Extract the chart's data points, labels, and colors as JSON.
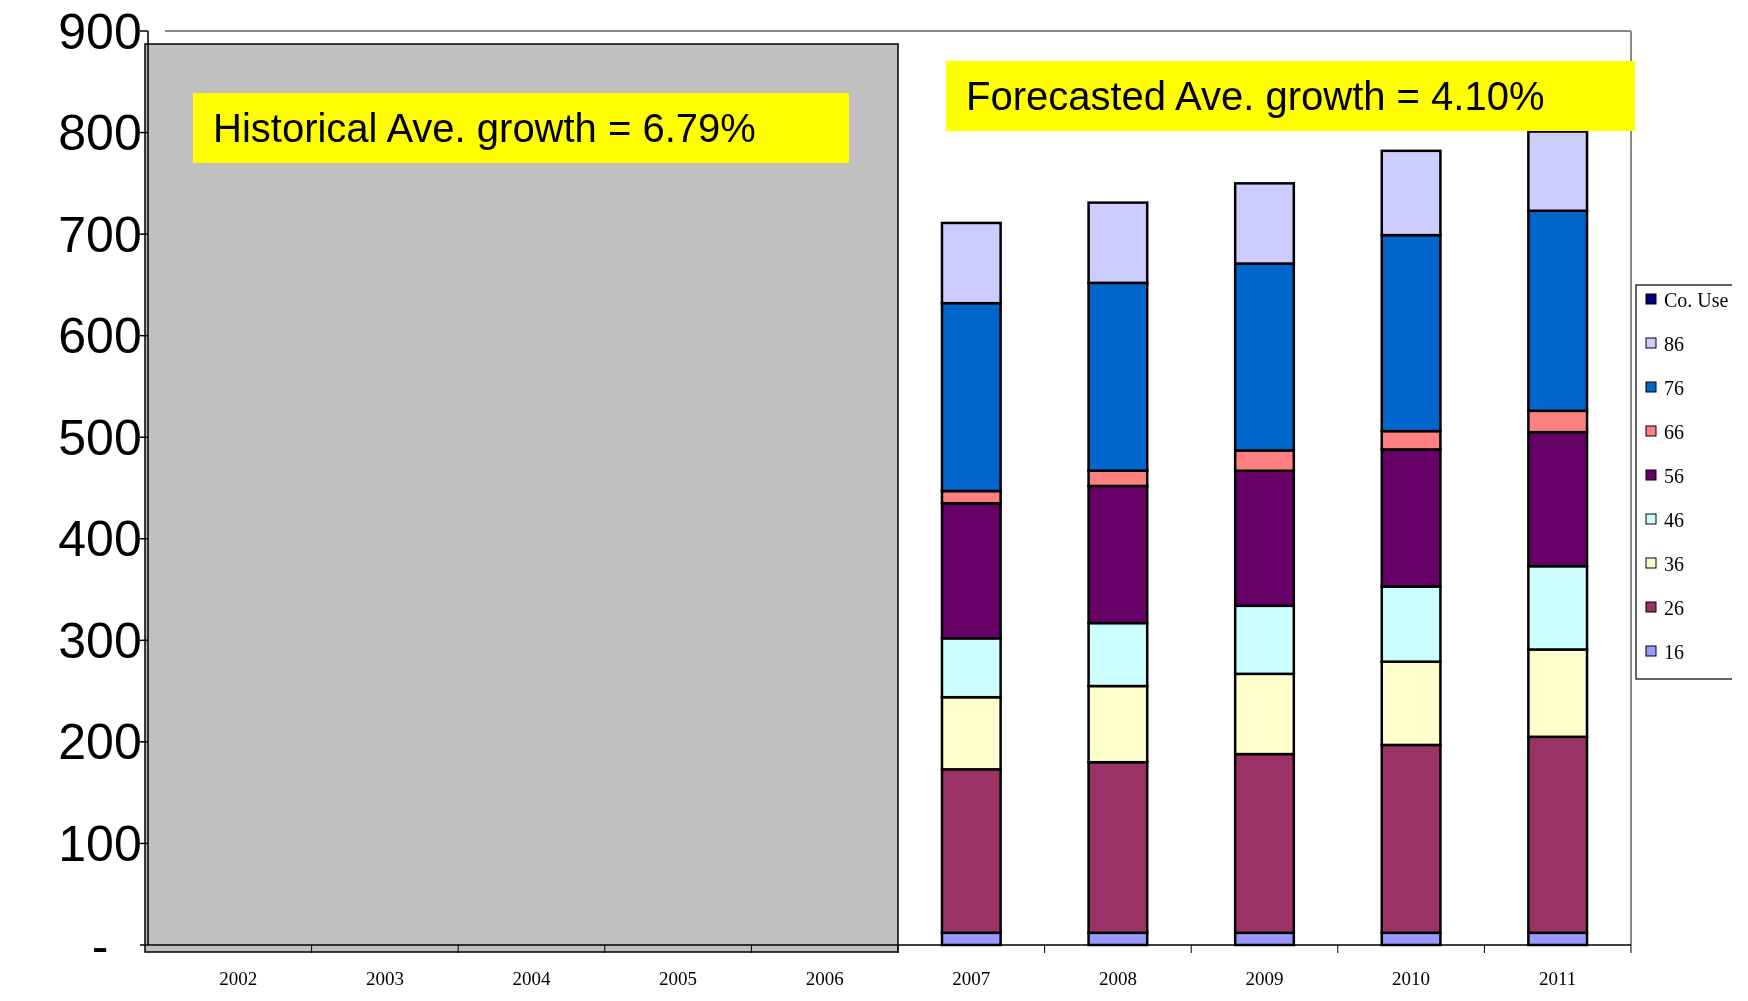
{
  "chart_data": {
    "type": "bar",
    "stacked": true,
    "categories": [
      "2002",
      "2003",
      "2004",
      "2005",
      "2006",
      "2007",
      "2008",
      "2009",
      "2010",
      "2011"
    ],
    "series": [
      {
        "name": "16",
        "color": "#9999ff",
        "values": [
          null,
          null,
          null,
          null,
          null,
          12,
          12,
          12,
          12,
          12
        ]
      },
      {
        "name": "26",
        "color": "#993366",
        "values": [
          null,
          null,
          null,
          null,
          null,
          161,
          168,
          176,
          185,
          193
        ]
      },
      {
        "name": "36",
        "color": "#ffffcc",
        "values": [
          null,
          null,
          null,
          null,
          null,
          71,
          75,
          79,
          82,
          86
        ]
      },
      {
        "name": "46",
        "color": "#ccffff",
        "values": [
          null,
          null,
          null,
          null,
          null,
          58,
          62,
          67,
          74,
          82
        ]
      },
      {
        "name": "56",
        "color": "#660066",
        "values": [
          null,
          null,
          null,
          null,
          null,
          133,
          135,
          133,
          135,
          132
        ]
      },
      {
        "name": "66",
        "color": "#ff8080",
        "values": [
          null,
          null,
          null,
          null,
          null,
          12,
          15,
          20,
          18,
          21
        ]
      },
      {
        "name": "76",
        "color": "#0066cc",
        "values": [
          null,
          null,
          null,
          null,
          null,
          185,
          185,
          184,
          193,
          197
        ]
      },
      {
        "name": "86",
        "color": "#ccccff",
        "values": [
          null,
          null,
          null,
          null,
          null,
          79,
          79,
          79,
          83,
          78
        ]
      },
      {
        "name": "Co. Use",
        "color": "#000080",
        "values": [
          null,
          null,
          null,
          null,
          null,
          0,
          0,
          0,
          0,
          0
        ]
      }
    ],
    "ylim": [
      0,
      900
    ],
    "yticks": [
      {
        "value": 0,
        "label": "-"
      },
      100,
      200,
      300,
      400,
      500,
      600,
      700,
      800,
      900
    ],
    "bands": [
      {
        "axis": "x",
        "from": "2002",
        "to": "2006",
        "color": "#c0c0c0"
      }
    ],
    "annotations": [
      "Historical Ave. growth = 6.79%",
      "Forecasted Ave. growth = 4.10%"
    ],
    "legend": "right"
  }
}
